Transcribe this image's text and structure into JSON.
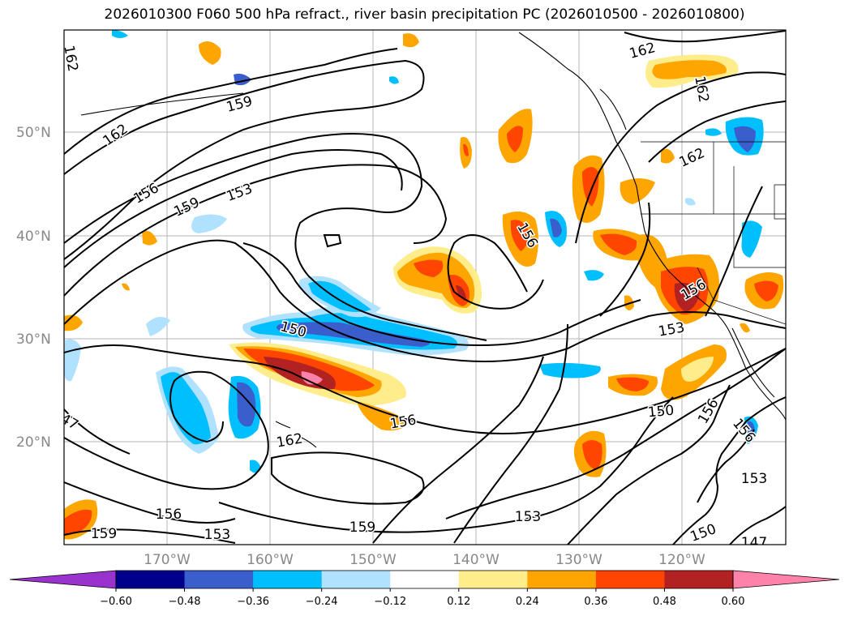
{
  "title": "2026010300 F060 500 hPa refract., river basin precipitation PC (2026010500 - 2026010800)",
  "map": {
    "lat_labels": [
      "50°N",
      "40°N",
      "30°N",
      "20°N"
    ],
    "lon_labels": [
      "170°W",
      "160°W",
      "150°W",
      "140°W",
      "130°W",
      "120°W"
    ],
    "contour_labels": [
      {
        "text": "162",
        "rot": 80
      },
      {
        "text": "159",
        "rot": -15
      },
      {
        "text": "162",
        "rot": -35
      },
      {
        "text": "156",
        "rot": -30
      },
      {
        "text": "159",
        "rot": -25
      },
      {
        "text": "153",
        "rot": -20
      },
      {
        "text": "150",
        "rot": 15
      },
      {
        "text": "156",
        "rot": -10
      },
      {
        "text": "162",
        "rot": -10
      },
      {
        "text": "47",
        "rot": 30
      },
      {
        "text": "156",
        "rot": 0
      },
      {
        "text": "159",
        "rot": 0
      },
      {
        "text": "153",
        "rot": 0
      },
      {
        "text": "159",
        "rot": 0
      },
      {
        "text": "153",
        "rot": 0
      },
      {
        "text": "156",
        "rot": 60
      },
      {
        "text": "162",
        "rot": -15
      },
      {
        "text": "162",
        "rot": 80
      },
      {
        "text": "162",
        "rot": -25
      },
      {
        "text": "156",
        "rot": -30
      },
      {
        "text": "153",
        "rot": -10
      },
      {
        "text": "150",
        "rot": -5
      },
      {
        "text": "156",
        "rot": -60
      },
      {
        "text": "156",
        "rot": 50
      },
      {
        "text": "153",
        "rot": 0
      },
      {
        "text": "150",
        "rot": -20
      },
      {
        "text": "147",
        "rot": 0
      }
    ]
  },
  "colorbar": {
    "colors": [
      "#9a32cd",
      "#00008b",
      "#3a5fcd",
      "#00bfff",
      "#b0e2ff",
      "#ffffff",
      "#ffec8b",
      "#ffa500",
      "#ff4500",
      "#b22222",
      "#ff82ab"
    ],
    "tick_labels": [
      "−0.60",
      "−0.48",
      "−0.36",
      "−0.24",
      "−0.12",
      "0.12",
      "0.24",
      "0.36",
      "0.48",
      "0.60"
    ]
  }
}
